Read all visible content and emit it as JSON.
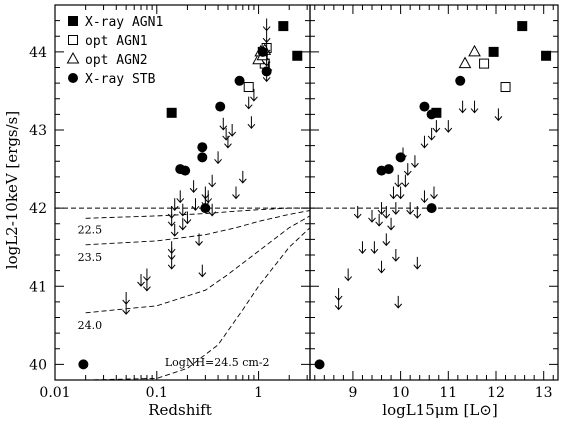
{
  "chart_data": [
    {
      "type": "scatter",
      "panel": "left",
      "xlabel": "Redshift",
      "ylabel": "logL2-10keV [ergs/s]",
      "x_scale": "log",
      "xlim": [
        0.01,
        3.2
      ],
      "ylim": [
        39.8,
        44.6
      ],
      "xticks": [
        {
          "v": 0.01,
          "label": "0.01"
        },
        {
          "v": 0.1,
          "label": "0.1"
        },
        {
          "v": 1,
          "label": "1"
        }
      ],
      "yticks": [
        {
          "v": 40,
          "label": "40"
        },
        {
          "v": 41,
          "label": "41"
        },
        {
          "v": 42,
          "label": "42"
        },
        {
          "v": 43,
          "label": "43"
        },
        {
          "v": 44,
          "label": "44"
        }
      ],
      "hline": 42,
      "series": [
        {
          "name": "X-ray AGN1",
          "marker": "filled-square",
          "points": [
            [
              0.14,
              43.22
            ],
            [
              1.1,
              44.0
            ],
            [
              1.75,
              44.33
            ],
            [
              2.4,
              43.95
            ]
          ]
        },
        {
          "name": "opt AGN1",
          "marker": "open-square",
          "points": [
            [
              0.8,
              43.55
            ],
            [
              1.15,
              43.85
            ],
            [
              1.2,
              44.05
            ]
          ]
        },
        {
          "name": "opt AGN2",
          "marker": "open-triangle",
          "points": [
            [
              1.0,
              43.9
            ],
            [
              1.05,
              44.0
            ],
            [
              1.1,
              43.95
            ],
            [
              1.15,
              44.02
            ]
          ]
        },
        {
          "name": "X-ray STB",
          "marker": "filled-circle",
          "points": [
            [
              0.019,
              40.0
            ],
            [
              0.17,
              42.5
            ],
            [
              0.19,
              42.48
            ],
            [
              0.28,
              42.78
            ],
            [
              0.28,
              42.65
            ],
            [
              0.3,
              42.0
            ],
            [
              0.42,
              43.3
            ],
            [
              0.65,
              43.63
            ],
            [
              1.2,
              43.75
            ],
            [
              1.1,
              44.0
            ]
          ]
        },
        {
          "name": "upper limits",
          "marker": "down-arrow",
          "points": [
            [
              0.05,
              40.85
            ],
            [
              0.05,
              40.72
            ],
            [
              0.07,
              41.08
            ],
            [
              0.08,
              41.15
            ],
            [
              0.08,
              41.02
            ],
            [
              0.14,
              41.5
            ],
            [
              0.14,
              41.42
            ],
            [
              0.14,
              41.3
            ],
            [
              0.14,
              41.95
            ],
            [
              0.14,
              41.85
            ],
            [
              0.15,
              42.05
            ],
            [
              0.15,
              41.72
            ],
            [
              0.17,
              42.15
            ],
            [
              0.18,
              41.98
            ],
            [
              0.18,
              41.8
            ],
            [
              0.2,
              41.88
            ],
            [
              0.23,
              42.28
            ],
            [
              0.24,
              42.05
            ],
            [
              0.26,
              41.6
            ],
            [
              0.28,
              41.2
            ],
            [
              0.3,
              42.2
            ],
            [
              0.3,
              42.1
            ],
            [
              0.32,
              42.15
            ],
            [
              0.35,
              42.35
            ],
            [
              0.35,
              41.98
            ],
            [
              0.4,
              42.65
            ],
            [
              0.45,
              43.08
            ],
            [
              0.48,
              42.95
            ],
            [
              0.5,
              42.85
            ],
            [
              0.55,
              43.0
            ],
            [
              0.6,
              42.2
            ],
            [
              0.7,
              42.4
            ],
            [
              0.8,
              43.35
            ],
            [
              0.85,
              43.1
            ],
            [
              0.9,
              43.45
            ],
            [
              1.2,
              44.35
            ],
            [
              1.2,
              44.2
            ],
            [
              1.2,
              44.05
            ],
            [
              1.2,
              43.9
            ],
            [
              1.25,
              43.8
            ],
            [
              1.2,
              43.7
            ]
          ]
        }
      ],
      "curves": [
        {
          "label": "22.5",
          "points": [
            [
              0.02,
              41.87
            ],
            [
              0.1,
              41.9
            ],
            [
              0.3,
              41.93
            ],
            [
              0.6,
              41.96
            ],
            [
              1.0,
              41.98
            ],
            [
              2.0,
              42.0
            ],
            [
              3.2,
              42.0
            ]
          ]
        },
        {
          "label": "23.5",
          "points": [
            [
              0.02,
              41.53
            ],
            [
              0.1,
              41.58
            ],
            [
              0.3,
              41.66
            ],
            [
              0.6,
              41.75
            ],
            [
              1.0,
              41.83
            ],
            [
              2.0,
              41.92
            ],
            [
              3.2,
              41.97
            ]
          ]
        },
        {
          "label": "24.0",
          "points": [
            [
              0.02,
              40.66
            ],
            [
              0.1,
              40.75
            ],
            [
              0.3,
              40.95
            ],
            [
              0.5,
              41.15
            ],
            [
              1.0,
              41.45
            ],
            [
              2.0,
              41.75
            ],
            [
              3.2,
              41.9
            ]
          ]
        },
        {
          "label": "LogNH=24.5 cm-2",
          "points": [
            [
              0.02,
              39.8
            ],
            [
              0.1,
              39.82
            ],
            [
              0.2,
              39.95
            ],
            [
              0.4,
              40.25
            ],
            [
              0.7,
              40.7
            ],
            [
              1.0,
              41.0
            ],
            [
              2.0,
              41.5
            ],
            [
              3.2,
              41.75
            ]
          ]
        }
      ],
      "legend": {
        "placement": "top-left",
        "entries": [
          {
            "marker": "filled-square",
            "label": "X-ray AGN1"
          },
          {
            "marker": "open-square",
            "label": "opt AGN1"
          },
          {
            "marker": "open-triangle",
            "label": "opt AGN2"
          },
          {
            "marker": "filled-circle",
            "label": "X-ray STB"
          }
        ]
      }
    },
    {
      "type": "scatter",
      "panel": "right",
      "xlabel": "logL15μm [L⊙]",
      "ylabel": "",
      "x_scale": "linear",
      "xlim": [
        8.1,
        13.3
      ],
      "ylim": [
        39.8,
        44.6
      ],
      "xticks": [
        {
          "v": 9,
          "label": "9"
        },
        {
          "v": 10,
          "label": "10"
        },
        {
          "v": 11,
          "label": "11"
        },
        {
          "v": 12,
          "label": "12"
        },
        {
          "v": 13,
          "label": "13"
        }
      ],
      "hline": 42,
      "series": [
        {
          "name": "X-ray AGN1",
          "marker": "filled-square",
          "points": [
            [
              10.75,
              43.22
            ],
            [
              11.95,
              44.0
            ],
            [
              12.55,
              44.33
            ],
            [
              13.05,
              43.95
            ]
          ]
        },
        {
          "name": "opt AGN1",
          "marker": "open-square",
          "points": [
            [
              11.75,
              43.85
            ],
            [
              12.2,
              43.55
            ]
          ]
        },
        {
          "name": "opt AGN2",
          "marker": "open-triangle",
          "points": [
            [
              11.35,
              43.85
            ],
            [
              11.55,
              44.0
            ]
          ]
        },
        {
          "name": "X-ray STB",
          "marker": "filled-circle",
          "points": [
            [
              8.3,
              40.0
            ],
            [
              9.6,
              42.48
            ],
            [
              9.75,
              42.5
            ],
            [
              10.0,
              42.65
            ],
            [
              10.5,
              43.3
            ],
            [
              10.65,
              43.2
            ],
            [
              10.65,
              42.0
            ],
            [
              11.25,
              43.63
            ]
          ]
        },
        {
          "name": "upper limits",
          "marker": "down-arrow",
          "points": [
            [
              8.7,
              40.9
            ],
            [
              8.7,
              40.78
            ],
            [
              8.9,
              41.15
            ],
            [
              9.1,
              41.95
            ],
            [
              9.2,
              41.5
            ],
            [
              9.4,
              41.9
            ],
            [
              9.45,
              41.5
            ],
            [
              9.55,
              41.85
            ],
            [
              9.6,
              41.25
            ],
            [
              9.6,
              42.0
            ],
            [
              9.7,
              41.95
            ],
            [
              9.7,
              41.6
            ],
            [
              9.8,
              41.8
            ],
            [
              9.85,
              42.2
            ],
            [
              9.9,
              42.0
            ],
            [
              9.9,
              41.4
            ],
            [
              9.95,
              42.35
            ],
            [
              9.95,
              40.8
            ],
            [
              10.0,
              42.2
            ],
            [
              10.05,
              42.7
            ],
            [
              10.1,
              42.35
            ],
            [
              10.15,
              42.5
            ],
            [
              10.2,
              42.0
            ],
            [
              10.3,
              42.6
            ],
            [
              10.35,
              41.95
            ],
            [
              10.35,
              41.3
            ],
            [
              10.5,
              42.85
            ],
            [
              10.5,
              42.15
            ],
            [
              10.65,
              42.95
            ],
            [
              10.7,
              42.2
            ],
            [
              10.75,
              43.05
            ],
            [
              11.0,
              43.05
            ],
            [
              11.3,
              43.3
            ],
            [
              11.55,
              43.3
            ],
            [
              12.05,
              43.2
            ]
          ]
        }
      ]
    }
  ]
}
